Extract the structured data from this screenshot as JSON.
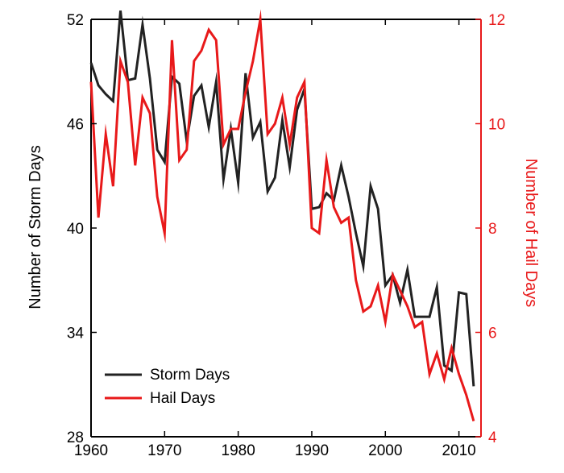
{
  "chart_data": {
    "type": "line",
    "title": "",
    "xlabel": "",
    "ylabel_left": "Number of Storm Days",
    "ylabel_right": "Number of Hail Days",
    "xlim": [
      1960,
      2013
    ],
    "ylim_left": [
      28,
      52
    ],
    "ylim_right": [
      4,
      12
    ],
    "x_ticks": [
      1960,
      1970,
      1980,
      1990,
      2000,
      2010
    ],
    "y_left_ticks": [
      28,
      34,
      40,
      46,
      52
    ],
    "y_right_ticks": [
      4,
      6,
      8,
      10,
      12
    ],
    "grid": false,
    "legend": "bottom-left",
    "colors": {
      "storm": "#222222",
      "hail": "#e8191a",
      "right_axis": "#e8191a"
    },
    "series": [
      {
        "name": "Storm Days",
        "axis": "left",
        "color": "#222222",
        "x": [
          1960,
          1961,
          1962,
          1963,
          1964,
          1965,
          1966,
          1967,
          1968,
          1969,
          1970,
          1971,
          1972,
          1973,
          1974,
          1975,
          1976,
          1977,
          1978,
          1979,
          1980,
          1981,
          1982,
          1983,
          1984,
          1985,
          1986,
          1987,
          1988,
          1989,
          1990,
          1991,
          1992,
          1993,
          1994,
          1995,
          1996,
          1997,
          1998,
          1999,
          2000,
          2001,
          2002,
          2003,
          2004,
          2005,
          2006,
          2007,
          2008,
          2009,
          2010,
          2011,
          2012
        ],
        "values": [
          49.5,
          48.2,
          47.7,
          47.3,
          52.5,
          48.5,
          48.6,
          51.7,
          48.6,
          44.5,
          43.8,
          48.7,
          48.3,
          45.0,
          47.6,
          48.2,
          45.8,
          48.4,
          42.8,
          45.7,
          42.6,
          48.9,
          45.2,
          46.1,
          42.1,
          42.9,
          46.2,
          43.5,
          46.8,
          48.0,
          41.1,
          41.2,
          42.0,
          41.6,
          43.6,
          41.8,
          39.7,
          37.8,
          42.4,
          41.1,
          36.7,
          37.3,
          35.7,
          37.6,
          34.9,
          34.9,
          34.9,
          36.6,
          32.1,
          31.8,
          36.3,
          36.2,
          30.9
        ]
      },
      {
        "name": "Hail Days",
        "axis": "right",
        "color": "#e8191a",
        "x": [
          1960,
          1961,
          1962,
          1963,
          1964,
          1965,
          1966,
          1967,
          1968,
          1969,
          1970,
          1971,
          1972,
          1973,
          1974,
          1975,
          1976,
          1977,
          1978,
          1979,
          1980,
          1981,
          1982,
          1983,
          1984,
          1985,
          1986,
          1987,
          1988,
          1989,
          1990,
          1991,
          1992,
          1993,
          1994,
          1995,
          1996,
          1997,
          1998,
          1999,
          2000,
          2001,
          2002,
          2003,
          2004,
          2005,
          2006,
          2007,
          2008,
          2009,
          2010,
          2011,
          2012
        ],
        "values": [
          10.8,
          8.2,
          9.8,
          8.8,
          11.2,
          10.8,
          9.2,
          10.5,
          10.2,
          8.6,
          7.9,
          11.6,
          9.3,
          9.5,
          11.2,
          11.4,
          11.8,
          11.6,
          9.6,
          9.9,
          9.9,
          10.6,
          11.2,
          12.0,
          9.8,
          10.0,
          10.5,
          9.6,
          10.5,
          10.8,
          8.0,
          7.9,
          9.3,
          8.4,
          8.1,
          8.2,
          7.0,
          6.4,
          6.5,
          6.9,
          6.2,
          7.1,
          6.8,
          6.5,
          6.1,
          6.2,
          5.2,
          5.6,
          5.1,
          5.7,
          5.2,
          4.8,
          4.3
        ]
      }
    ]
  }
}
